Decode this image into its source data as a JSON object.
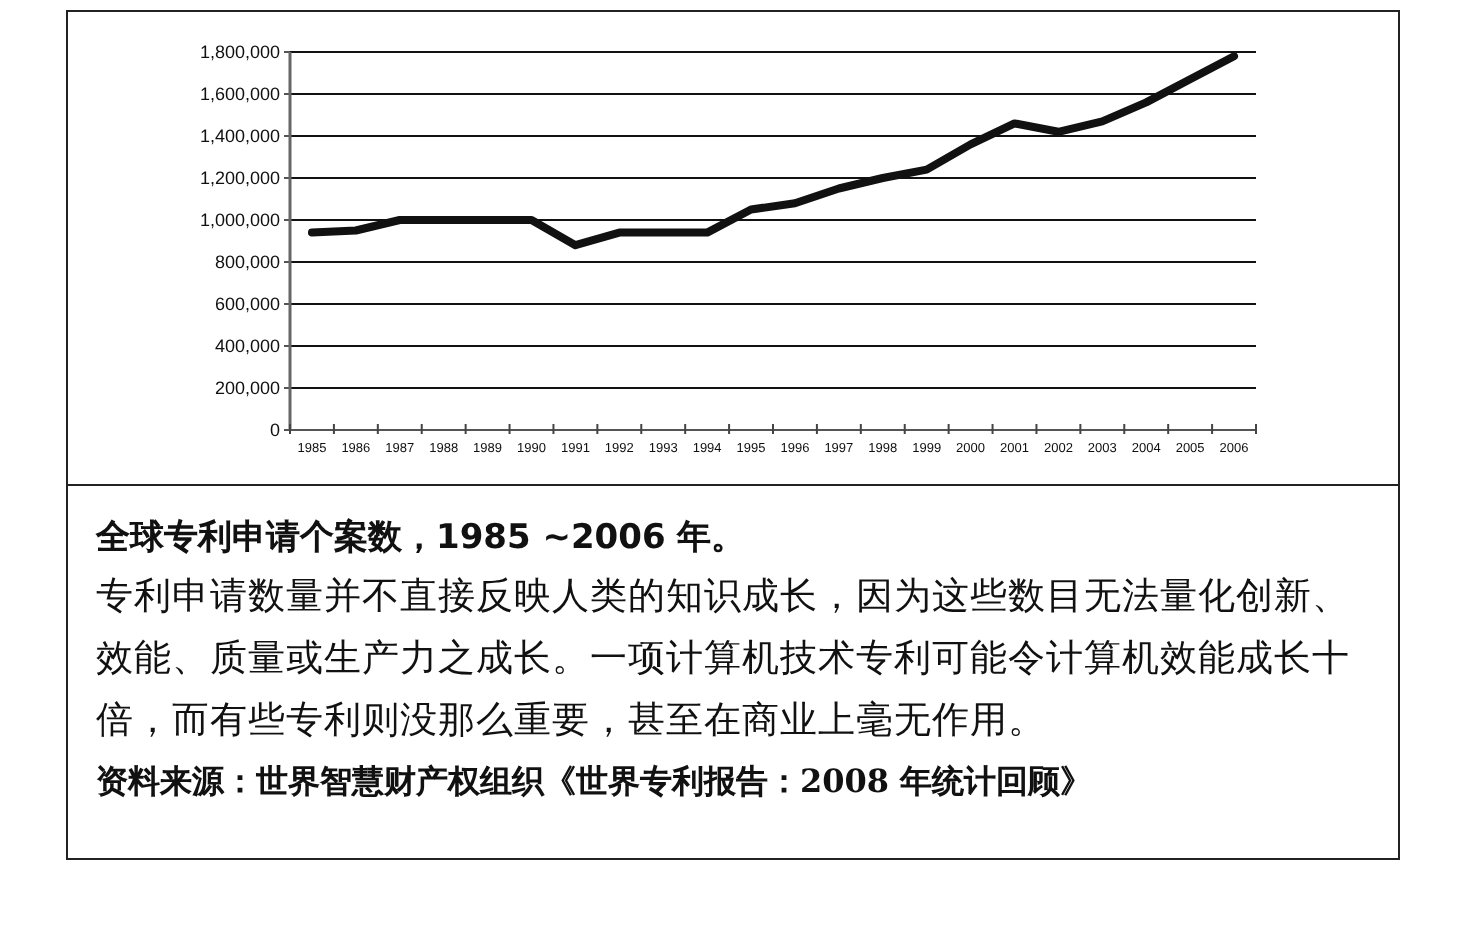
{
  "chart_data": {
    "type": "line",
    "categories": [
      "1985",
      "1986",
      "1987",
      "1988",
      "1989",
      "1990",
      "1991",
      "1992",
      "1993",
      "1994",
      "1995",
      "1996",
      "1997",
      "1998",
      "1999",
      "2000",
      "2001",
      "2002",
      "2003",
      "2004",
      "2005",
      "2006"
    ],
    "series": [
      {
        "color": "#111111",
        "values": [
          940000,
          950000,
          1000000,
          1000000,
          1000000,
          1000000,
          880000,
          940000,
          940000,
          940000,
          1050000,
          1080000,
          1150000,
          1200000,
          1240000,
          1360000,
          1460000,
          1420000,
          1470000,
          1560000,
          1670000,
          1780000
        ]
      }
    ],
    "ylim": [
      0,
      1800000
    ],
    "yticks": [
      0,
      {
        "value": 200000,
        "label": "200,000"
      },
      {
        "value": 400000,
        "label": "400,000"
      },
      {
        "value": 600000,
        "label": "600,000"
      },
      {
        "value": 800000,
        "label": "800,000"
      },
      {
        "value": 1000000,
        "label": "1,000,000"
      },
      {
        "value": 1200000,
        "label": "1,200,000"
      },
      {
        "value": 1400000,
        "label": "1,400,000"
      },
      {
        "value": 1600000,
        "label": "1,600,000"
      },
      {
        "value": 1800000,
        "label": "1,800,000"
      }
    ],
    "grid": "y",
    "marker": "none",
    "line_style": "solid",
    "annotations": [
      "全球专利申请个案数，1985 ~2006 年。",
      "专利申请数量并不直接反映人类的知识成长，因为这些数目无法量化创新、效能、质量或生产力之成长。一项计算机技术专利可能令计算机效能成长十倍，而有些专利则没那么重要，甚至在商业上毫无作用。",
      "资料来源：世界智慧财产权组织《世界专利报告：2008 年统计回顾》"
    ]
  }
}
